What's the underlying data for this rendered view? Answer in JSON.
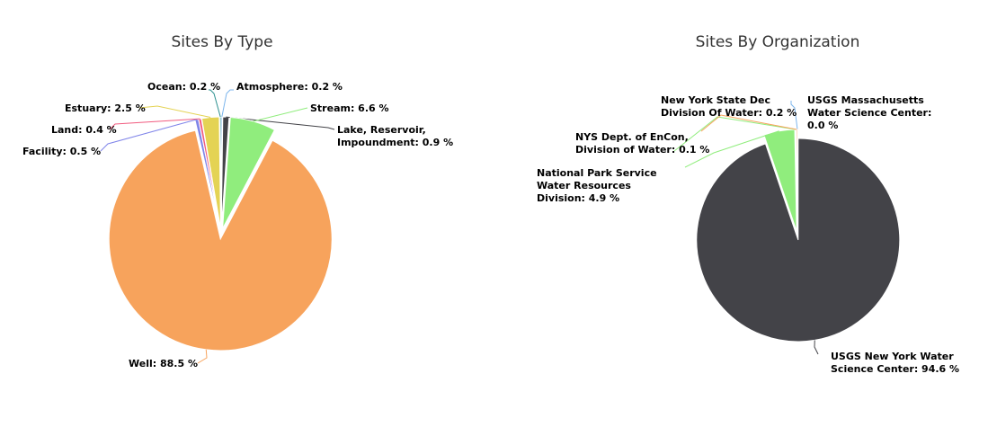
{
  "chart_data": [
    {
      "type": "pie",
      "title": "Sites By Type",
      "slices": [
        {
          "name": "Atmosphere",
          "value": 0.2,
          "label": "Atmosphere: 0.2 %",
          "color": "#7cb5ec"
        },
        {
          "name": "Lake, Reservoir, Impoundment",
          "value": 0.9,
          "label": "Lake, Reservoir, Impoundment: 0.9 %",
          "color": "#434348"
        },
        {
          "name": "Stream",
          "value": 6.6,
          "label": "Stream: 6.6 %",
          "color": "#90ed7d"
        },
        {
          "name": "Well",
          "value": 88.5,
          "label": "Well: 88.5 %",
          "color": "#f7a35c"
        },
        {
          "name": "Facility",
          "value": 0.5,
          "label": "Facility: 0.5 %",
          "color": "#8085e9"
        },
        {
          "name": "Land",
          "value": 0.4,
          "label": "Land: 0.4 %",
          "color": "#f15c80"
        },
        {
          "name": "Estuary",
          "value": 2.5,
          "label": "Estuary: 2.5 %",
          "color": "#e4d354"
        },
        {
          "name": "Ocean",
          "value": 0.2,
          "label": "Ocean: 0.2 %",
          "color": "#2b908f"
        }
      ]
    },
    {
      "type": "pie",
      "title": "Sites By Organization",
      "slices": [
        {
          "name": "USGS Massachusetts Water Science Center",
          "value": 0.0,
          "label": "USGS Massachusetts Water Science Center: 0.0 %",
          "color": "#7cb5ec"
        },
        {
          "name": "USGS New York Water Science Center",
          "value": 94.6,
          "label": "USGS New York Water Science Center: 94.6 %",
          "color": "#434348"
        },
        {
          "name": "National Park Service Water Resources Division",
          "value": 4.9,
          "label": "National Park Service Water Resources Division: 4.9 %",
          "color": "#90ed7d"
        },
        {
          "name": "NYS Dept. of EnCon, Division of Water",
          "value": 0.1,
          "label": "NYS Dept. of EnCon, Division of Water: 0.1 %",
          "color": "#90ed7d"
        },
        {
          "name": "New York State Dec Division Of Water",
          "value": 0.2,
          "label": "New York State Dec Division Of Water: 0.2 %",
          "color": "#f7a35c"
        }
      ]
    }
  ]
}
